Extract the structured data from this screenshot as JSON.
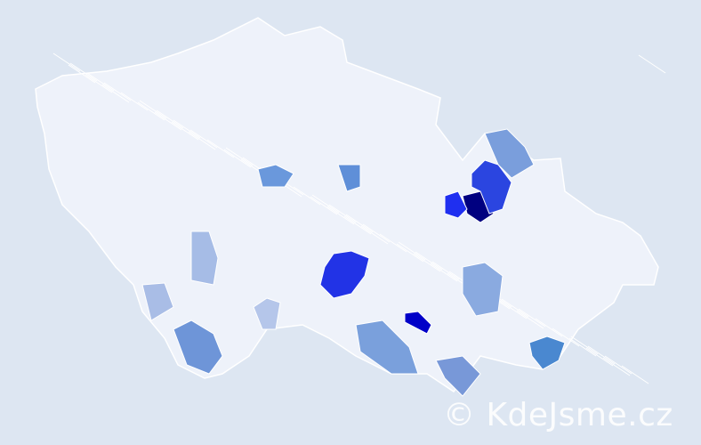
{
  "map": {
    "background_color": "#dde6f2",
    "base_region_color": "#eef2fa",
    "border_color": "#ffffff",
    "highlighted_regions": [
      {
        "color": "#000080"
      },
      {
        "color": "#2b45e0"
      },
      {
        "color": "#1f2ff0"
      },
      {
        "color": "#2233e6"
      },
      {
        "color": "#0000c8"
      },
      {
        "color": "#4a88d0"
      },
      {
        "color": "#7a9edc"
      },
      {
        "color": "#6e95d8"
      },
      {
        "color": "#6a98dc"
      },
      {
        "color": "#7aa0dc"
      },
      {
        "color": "#8aaae0"
      },
      {
        "color": "#a6bce6"
      },
      {
        "color": "#a9bde6"
      },
      {
        "color": "#b5c6ea"
      },
      {
        "color": "#7898d8"
      },
      {
        "color": "#5f8fd8"
      }
    ]
  },
  "watermark": "© KdeJsme.cz"
}
